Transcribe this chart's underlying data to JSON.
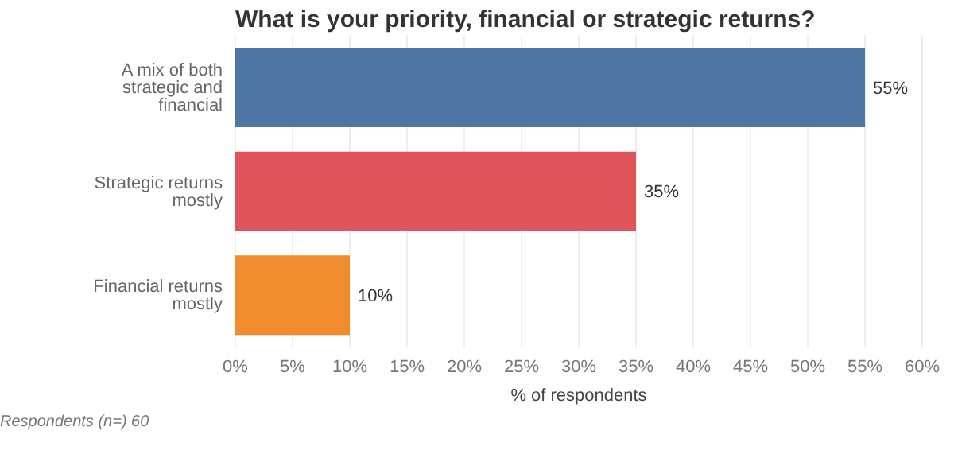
{
  "chart_data": {
    "type": "bar",
    "orientation": "horizontal",
    "title": "What is your priority, financial or strategic returns?",
    "categories": [
      "A mix of both strategic and financial",
      "Strategic returns mostly",
      "Financial returns mostly"
    ],
    "values": [
      55,
      35,
      10
    ],
    "colors": [
      "#4e76a5",
      "#e0555c",
      "#f08c2e"
    ],
    "value_labels": [
      "55%",
      "35%",
      "10%"
    ],
    "xlabel": "% of respondents",
    "xlim": [
      0,
      60
    ],
    "xticks": [
      {
        "value": 0,
        "label": "0%"
      },
      {
        "value": 5,
        "label": "5%"
      },
      {
        "value": 10,
        "label": "10%"
      },
      {
        "value": 15,
        "label": "15%"
      },
      {
        "value": 20,
        "label": "20%"
      },
      {
        "value": 25,
        "label": "25%"
      },
      {
        "value": 30,
        "label": "30%"
      },
      {
        "value": 35,
        "label": "35%"
      },
      {
        "value": 40,
        "label": "40%"
      },
      {
        "value": 45,
        "label": "45%"
      },
      {
        "value": 50,
        "label": "50%"
      },
      {
        "value": 55,
        "label": "55%"
      },
      {
        "value": 60,
        "label": "60%"
      }
    ],
    "grid": "x",
    "annotations": [
      "Respondents (n=) 60"
    ]
  }
}
